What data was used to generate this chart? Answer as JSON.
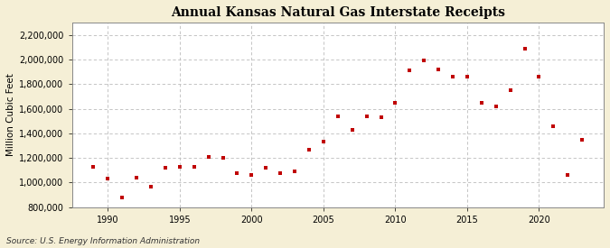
{
  "title": "Annual Kansas Natural Gas Interstate Receipts",
  "ylabel": "Million Cubic Feet",
  "source": "Source: U.S. Energy Information Administration",
  "background_color": "#f5efd6",
  "plot_background_color": "#ffffff",
  "marker_color": "#c00000",
  "marker": "s",
  "marker_size": 3.5,
  "years": [
    1989,
    1990,
    1991,
    1992,
    1993,
    1994,
    1995,
    1996,
    1997,
    1998,
    1999,
    2000,
    2001,
    2002,
    2003,
    2004,
    2005,
    2006,
    2007,
    2008,
    2009,
    2010,
    2011,
    2012,
    2013,
    2014,
    2015,
    2016,
    2017,
    2018,
    2019,
    2020,
    2021,
    2022,
    2023
  ],
  "values": [
    1130000,
    1030000,
    880000,
    1040000,
    970000,
    1120000,
    1130000,
    1130000,
    1210000,
    1200000,
    1080000,
    1060000,
    1120000,
    1080000,
    1090000,
    1270000,
    1330000,
    1540000,
    1430000,
    1540000,
    1530000,
    1650000,
    1910000,
    1990000,
    1920000,
    1860000,
    1860000,
    1650000,
    1620000,
    1750000,
    2090000,
    1860000,
    1460000,
    1060000,
    1350000
  ],
  "xlim": [
    1987.5,
    2024.5
  ],
  "ylim": [
    800000,
    2300000
  ],
  "yticks": [
    800000,
    1000000,
    1200000,
    1400000,
    1600000,
    1800000,
    2000000,
    2200000
  ],
  "xticks": [
    1990,
    1995,
    2000,
    2005,
    2010,
    2015,
    2020
  ],
  "grid_color": "#bbbbbb",
  "grid_style": "--",
  "title_fontsize": 10,
  "label_fontsize": 7.5,
  "tick_fontsize": 7,
  "source_fontsize": 6.5
}
